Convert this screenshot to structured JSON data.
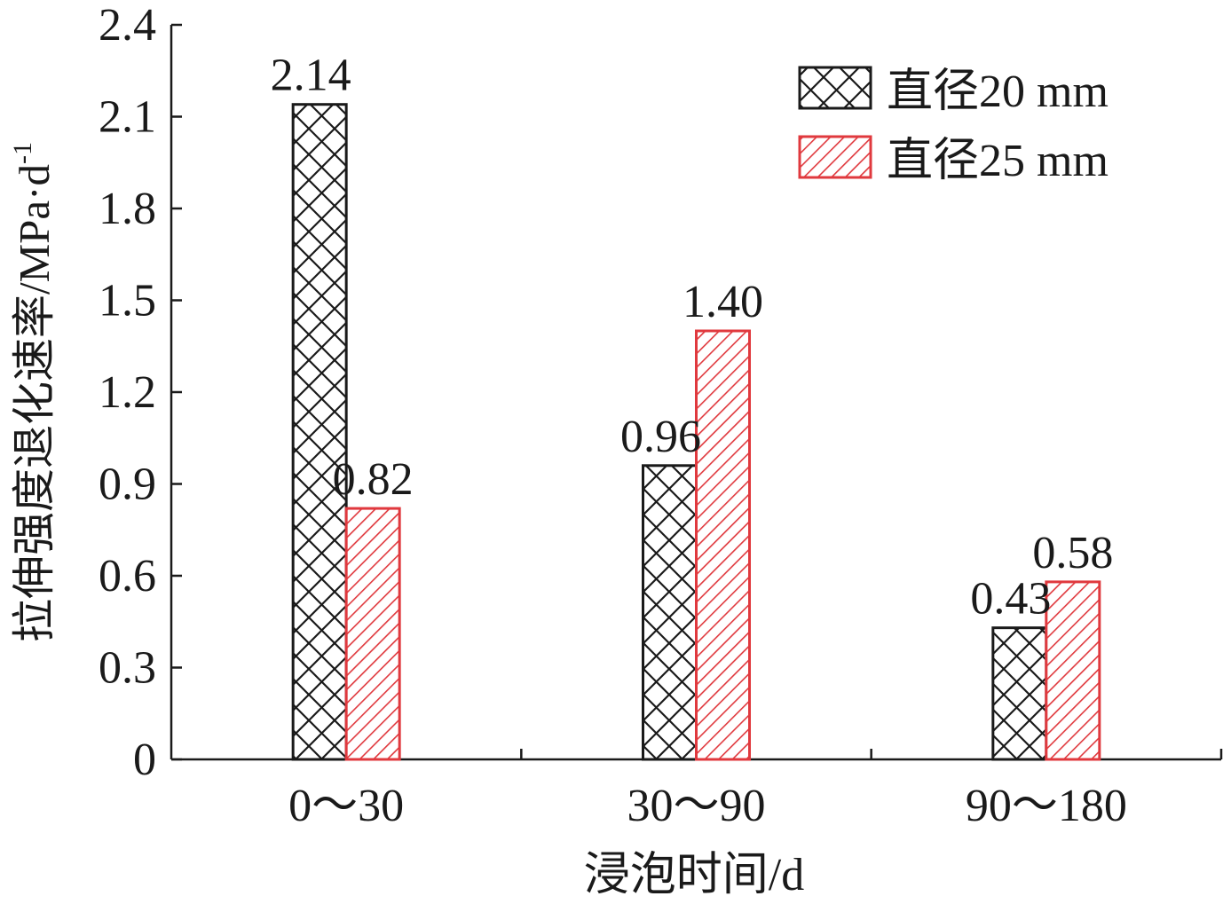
{
  "chart_data": {
    "type": "bar",
    "xlabel": "浸泡时间/d",
    "ylabel": "拉伸强度退化速率/MPa·d",
    "ylabel_superscript": "-1",
    "categories": [
      "0～30",
      "30～90",
      "90～180"
    ],
    "ylim": [
      0,
      2.4
    ],
    "yticks": [
      "0",
      "0.3",
      "0.6",
      "0.9",
      "1.2",
      "1.5",
      "1.8",
      "2.1",
      "2.4"
    ],
    "legend_position": "top-right",
    "grid": false,
    "series": [
      {
        "name": "直径20 mm",
        "values": [
          2.14,
          0.96,
          0.43
        ],
        "labels": [
          "2.14",
          "0.96",
          "0.43"
        ],
        "color": "#1a1a1a",
        "pattern": "crosshatch"
      },
      {
        "name": "直径25 mm",
        "values": [
          0.82,
          1.4,
          0.58
        ],
        "labels": [
          "0.82",
          "1.40",
          "0.58"
        ],
        "color": "#e0393e",
        "pattern": "diagonal-hatch"
      }
    ]
  }
}
